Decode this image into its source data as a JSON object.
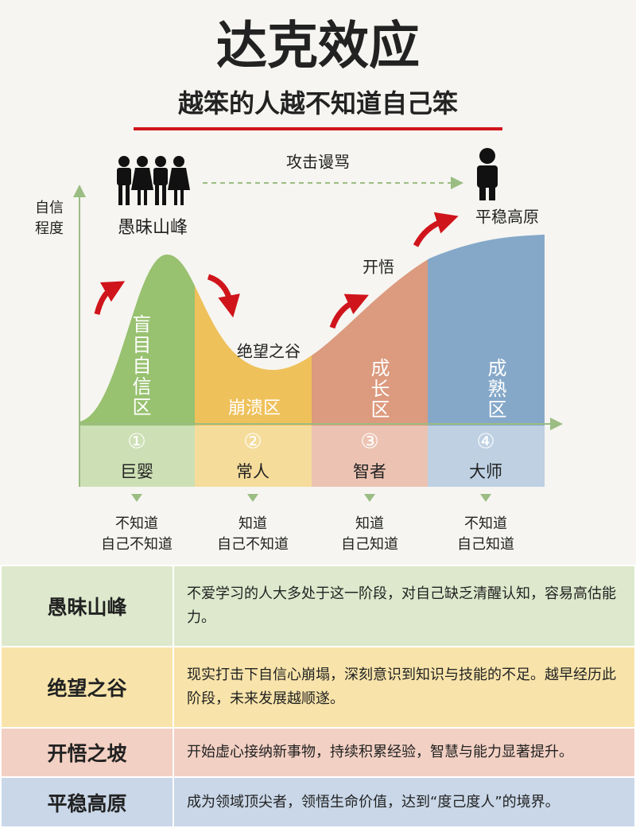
{
  "header": {
    "title": "达克效应",
    "subtitle": "越笨的人越不知道自己笨"
  },
  "diagram": {
    "y_axis_label": [
      "自信",
      "程度"
    ],
    "attack_label": "攻击谩骂",
    "curve_labels": [
      "愚昧山峰",
      "绝望之谷",
      "开悟",
      "平稳高原"
    ],
    "zones": [
      {
        "name": "盲目自信区",
        "number": "①",
        "role": "巨婴",
        "awareness": [
          "不知道",
          "自己不知道"
        ]
      },
      {
        "name": "崩溃区",
        "number": "②",
        "role": "常人",
        "awareness": [
          "知道",
          "自己不知道"
        ]
      },
      {
        "name": "成长区",
        "number": "③",
        "role": "智者",
        "awareness": [
          "知道",
          "自己知道"
        ]
      },
      {
        "name": "成熟区",
        "number": "④",
        "role": "大师",
        "awareness": [
          "不知道",
          "自己知道"
        ]
      }
    ]
  },
  "table": {
    "rows": [
      [
        "愚昧山峰",
        "不爱学习的人大多处于这一阶段，对自己缺乏清醒认知，容易高估能力。"
      ],
      [
        "绝望之谷",
        "现实打击下自信心崩塌，深刻意识到知识与技能的不足。越早经历此阶段，未来发展越顺遂。"
      ],
      [
        "开悟之坡",
        "开始虚心接纳新事物，持续积累经验，智慧与能力显著提升。"
      ],
      [
        "平稳高原",
        "成为领域顶尖者，领悟生命价值，达到“度己度人”的境界。"
      ]
    ]
  }
}
